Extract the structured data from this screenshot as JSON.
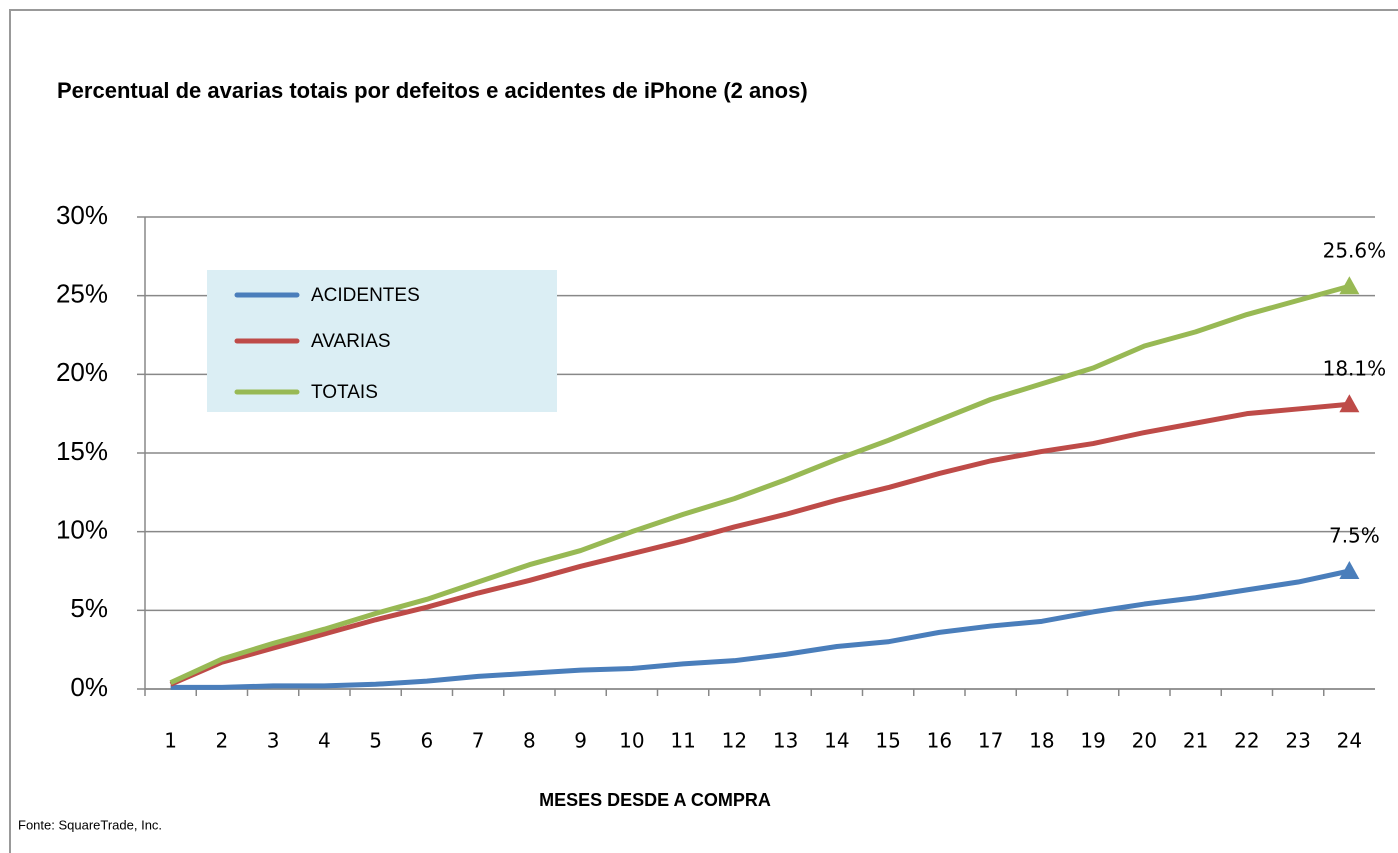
{
  "chart_data": {
    "type": "line",
    "title": "Percentual de avarias totais por  defeitos e acidentes de iPhone (2 anos)",
    "x_label": "MESES DESDE A COMPRA",
    "source": "Fonte: SquareTrade, Inc.",
    "categories": [
      "1",
      "2",
      "3",
      "4",
      "5",
      "6",
      "7",
      "8",
      "9",
      "10",
      "11",
      "12",
      "13",
      "14",
      "15",
      "16",
      "17",
      "18",
      "19",
      "20",
      "21",
      "22",
      "23",
      "24"
    ],
    "series": [
      {
        "name": "ACIDENTES",
        "color": "#4a7ebb",
        "values": [
          0.1,
          0.1,
          0.2,
          0.2,
          0.3,
          0.5,
          0.8,
          1.0,
          1.2,
          1.3,
          1.6,
          1.8,
          2.2,
          2.7,
          3.0,
          3.6,
          4.0,
          4.3,
          4.9,
          5.4,
          5.8,
          6.3,
          6.8,
          7.5
        ],
        "value_labels": [
          null,
          null,
          null,
          null,
          null,
          null,
          null,
          null,
          null,
          null,
          null,
          null,
          null,
          null,
          null,
          null,
          null,
          null,
          null,
          null,
          null,
          null,
          null,
          "7.5%"
        ]
      },
      {
        "name": "AVARIAS",
        "color": "#be4b48",
        "values": [
          0.3,
          1.7,
          2.6,
          3.5,
          4.4,
          5.2,
          6.1,
          6.9,
          7.8,
          8.6,
          9.4,
          10.3,
          11.1,
          12.0,
          12.8,
          13.7,
          14.5,
          15.1,
          15.6,
          16.3,
          16.9,
          17.5,
          17.8,
          18.1
        ],
        "value_labels": [
          null,
          null,
          null,
          null,
          null,
          null,
          null,
          null,
          null,
          null,
          null,
          null,
          null,
          null,
          null,
          null,
          null,
          null,
          null,
          null,
          null,
          null,
          null,
          "18.1%"
        ]
      },
      {
        "name": "TOTAIS",
        "color": "#98b954",
        "values": [
          0.4,
          1.9,
          2.9,
          3.8,
          4.8,
          5.7,
          6.8,
          7.9,
          8.8,
          10.0,
          11.1,
          12.1,
          13.3,
          14.6,
          15.8,
          17.1,
          18.4,
          19.4,
          20.4,
          21.8,
          22.7,
          23.8,
          24.7,
          25.6
        ],
        "value_labels": [
          null,
          null,
          null,
          null,
          null,
          null,
          null,
          null,
          null,
          null,
          null,
          null,
          null,
          null,
          null,
          null,
          null,
          null,
          null,
          null,
          null,
          null,
          null,
          "25.6%"
        ]
      }
    ],
    "ylim": [
      0,
      30
    ],
    "yticks": [
      {
        "value": 0,
        "label": "0%"
      },
      {
        "value": 5,
        "label": "5%"
      },
      {
        "value": 10,
        "label": "10%"
      },
      {
        "value": 15,
        "label": "15%"
      },
      {
        "value": 20,
        "label": "20%"
      },
      {
        "value": 25,
        "label": "25%"
      },
      {
        "value": 30,
        "label": "30%"
      }
    ],
    "grid": true,
    "legend": "upper left"
  }
}
